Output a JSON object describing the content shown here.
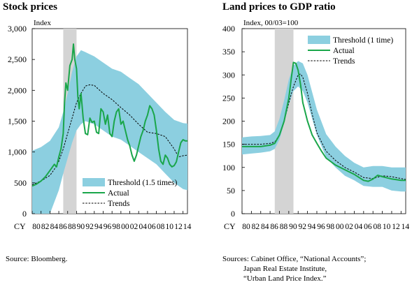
{
  "charts": [
    {
      "title": "Stock prices",
      "source_lines": [
        "Source: Bloomberg."
      ]
    },
    {
      "title": "Land prices to GDP ratio",
      "source_lines": [
        "Sources: Cabinet Office, “National Accounts”;",
        "Japan Real Estate Institute,",
        "“Urban Land Price Index.”"
      ]
    }
  ],
  "colors": {
    "threshold_band": "#8ccfe0",
    "actual": "#1aa64a",
    "trends": "#000000",
    "bubble_shade": "#d4d4d4"
  },
  "chart_data": [
    {
      "type": "area",
      "title": "",
      "ylabel": "Index",
      "xlabel": "CY",
      "ylim": [
        0,
        3000
      ],
      "xlim": [
        1980,
        2015
      ],
      "yticks": [
        0,
        500,
        1000,
        1500,
        2000,
        2500,
        3000
      ],
      "ytick_labels": [
        "0",
        "500",
        "1,000",
        "1,500",
        "2,000",
        "2,500",
        "3,000"
      ],
      "xticks": [
        1980,
        1982,
        1984,
        1986,
        1988,
        1990,
        1992,
        1994,
        1996,
        1998,
        2000,
        2002,
        2004,
        2006,
        2008,
        2010,
        2012,
        2014
      ],
      "xtick_labels": [
        "80",
        "82",
        "84",
        "86",
        "88",
        "90",
        "92",
        "94",
        "96",
        "98",
        "00",
        "02",
        "04",
        "06",
        "08",
        "10",
        "12",
        "14"
      ],
      "shaded_period": [
        1987,
        1990
      ],
      "legend": {
        "position": "bottom-right",
        "entries": [
          "Threshold (1.5 times)",
          "Actual",
          "Trends"
        ]
      },
      "series": [
        {
          "name": "Threshold (1.5 times)",
          "kind": "band",
          "x": [
            1980,
            1982,
            1984,
            1986,
            1987,
            1988,
            1989,
            1990,
            1991,
            1992,
            1994,
            1996,
            1998,
            2000,
            2002,
            2004,
            2006,
            2008,
            2010,
            2012,
            2014,
            2015
          ],
          "upper": [
            1020,
            1080,
            1180,
            1400,
            1650,
            1950,
            2300,
            2550,
            2650,
            2620,
            2550,
            2450,
            2350,
            2300,
            2200,
            2100,
            1950,
            1800,
            1650,
            1520,
            1470,
            1460
          ],
          "lower": [
            0,
            0,
            0,
            380,
            650,
            900,
            1150,
            1350,
            1450,
            1500,
            1450,
            1350,
            1250,
            1200,
            1100,
            1000,
            900,
            800,
            650,
            500,
            400,
            380
          ]
        },
        {
          "name": "Actual",
          "kind": "line",
          "x": [
            1980,
            1981,
            1982,
            1983,
            1984,
            1985,
            1985.5,
            1986,
            1986.5,
            1987,
            1987.3,
            1987.6,
            1988,
            1988.5,
            1989,
            1989.3,
            1989.6,
            1990,
            1990.3,
            1990.6,
            1991,
            1991.5,
            1992,
            1992.5,
            1993,
            1993.5,
            1994,
            1994.5,
            1995,
            1995.5,
            1996,
            1996.5,
            1997,
            1997.5,
            1998,
            1998.5,
            1999,
            1999.5,
            2000,
            2000.5,
            2001,
            2001.5,
            2002,
            2002.5,
            2003,
            2003.5,
            2004,
            2004.5,
            2005,
            2005.5,
            2006,
            2006.5,
            2007,
            2007.5,
            2008,
            2008.5,
            2009,
            2009.5,
            2010,
            2010.5,
            2011,
            2011.5,
            2012,
            2012.5,
            2013,
            2013.5,
            2014,
            2014.5,
            2015
          ],
          "y": [
            450,
            480,
            530,
            600,
            700,
            800,
            760,
            920,
            1050,
            1300,
            1800,
            2120,
            2000,
            2400,
            2500,
            2750,
            2500,
            2350,
            1900,
            1700,
            1950,
            1550,
            1300,
            1280,
            1550,
            1480,
            1500,
            1320,
            1300,
            1700,
            1650,
            1450,
            1600,
            1300,
            1250,
            1500,
            1650,
            1700,
            1450,
            1500,
            1350,
            1200,
            1100,
            950,
            850,
            950,
            1100,
            1250,
            1350,
            1500,
            1600,
            1750,
            1700,
            1600,
            1350,
            1050,
            850,
            800,
            950,
            900,
            800,
            760,
            780,
            840,
            1000,
            1150,
            1200,
            1180,
            1180
          ]
        },
        {
          "name": "Trends",
          "kind": "dashed",
          "x": [
            1980,
            1982,
            1984,
            1985,
            1986,
            1987,
            1988,
            1989,
            1990,
            1991,
            1992,
            1993,
            1994,
            1996,
            1998,
            2000,
            2002,
            2004,
            2006,
            2008,
            2010,
            2012,
            2013,
            2014,
            2015
          ],
          "y": [
            470,
            530,
            620,
            720,
            850,
            1050,
            1300,
            1550,
            1800,
            1950,
            2070,
            2090,
            2080,
            1950,
            1850,
            1720,
            1600,
            1450,
            1320,
            1300,
            1250,
            1050,
            920,
            940,
            950
          ]
        }
      ]
    },
    {
      "type": "area",
      "title": "",
      "ylabel": "Index, 00/03=100",
      "xlabel": "CY",
      "ylim": [
        0,
        400
      ],
      "xlim": [
        1980,
        2015
      ],
      "yticks": [
        0,
        50,
        100,
        150,
        200,
        250,
        300,
        350,
        400
      ],
      "ytick_labels": [
        "0",
        "50",
        "100",
        "150",
        "200",
        "250",
        "300",
        "350",
        "400"
      ],
      "xticks": [
        1980,
        1982,
        1984,
        1986,
        1988,
        1990,
        1992,
        1994,
        1996,
        1998,
        2000,
        2002,
        2004,
        2006,
        2008,
        2010,
        2012,
        2014
      ],
      "xtick_labels": [
        "80",
        "82",
        "84",
        "86",
        "88",
        "90",
        "92",
        "94",
        "96",
        "98",
        "00",
        "02",
        "04",
        "06",
        "08",
        "10",
        "12",
        "14"
      ],
      "shaded_period": [
        1987,
        1991
      ],
      "legend": {
        "position": "top-right",
        "entries": [
          "Threshold (1 time)",
          "Actual",
          "Trends"
        ]
      },
      "series": [
        {
          "name": "Threshold (1 time)",
          "kind": "band",
          "x": [
            1980,
            1982,
            1984,
            1986,
            1987,
            1988,
            1989,
            1990,
            1991,
            1992,
            1993,
            1994,
            1996,
            1998,
            2000,
            2002,
            2004,
            2006,
            2008,
            2010,
            2012,
            2014,
            2015
          ],
          "upper": [
            165,
            167,
            168,
            170,
            178,
            205,
            245,
            290,
            320,
            330,
            325,
            300,
            225,
            172,
            145,
            125,
            110,
            100,
            103,
            103,
            100,
            100,
            100
          ],
          "lower": [
            128,
            130,
            132,
            135,
            140,
            160,
            195,
            235,
            265,
            275,
            265,
            240,
            170,
            122,
            100,
            82,
            72,
            60,
            58,
            58,
            50,
            48,
            48
          ]
        },
        {
          "name": "Actual",
          "kind": "line",
          "x": [
            1980,
            1982,
            1984,
            1986,
            1987,
            1988,
            1989,
            1990,
            1990.5,
            1991,
            1991.5,
            1992,
            1992.5,
            1993,
            1994,
            1995,
            1996,
            1997,
            1998,
            2000,
            2002,
            2004,
            2006,
            2007,
            2008,
            2009,
            2010,
            2012,
            2014,
            2015
          ],
          "y": [
            145,
            145,
            145,
            148,
            152,
            170,
            200,
            250,
            290,
            327,
            325,
            310,
            280,
            240,
            200,
            170,
            152,
            135,
            120,
            105,
            95,
            85,
            72,
            70,
            75,
            83,
            80,
            75,
            72,
            72
          ]
        },
        {
          "name": "Trends",
          "kind": "dashed",
          "x": [
            1980,
            1982,
            1984,
            1986,
            1987,
            1988,
            1989,
            1990,
            1991,
            1992,
            1992.5,
            1993,
            1994,
            1995,
            1996,
            1998,
            2000,
            2002,
            2004,
            2006,
            2008,
            2010,
            2012,
            2014,
            2015
          ],
          "y": [
            150,
            150,
            150,
            152,
            155,
            170,
            200,
            240,
            275,
            300,
            302,
            295,
            260,
            215,
            175,
            135,
            115,
            100,
            90,
            78,
            76,
            82,
            80,
            76,
            74
          ]
        }
      ]
    }
  ]
}
